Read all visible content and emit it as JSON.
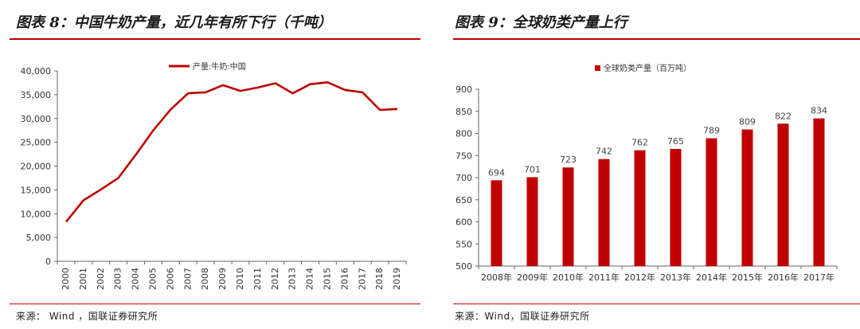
{
  "left": {
    "title": "图表 8：中国牛奶产量，近几年有所下行（千吨）",
    "source": "来源： Wind ，国联证券研究所",
    "color": "#c00000",
    "chart_data": {
      "type": "line",
      "x": [
        "2000",
        "2001",
        "2002",
        "2003",
        "2004",
        "2005",
        "2006",
        "2007",
        "2008",
        "2009",
        "2010",
        "2011",
        "2012",
        "2013",
        "2014",
        "2015",
        "2016",
        "2017",
        "2018",
        "2019"
      ],
      "series": [
        {
          "name": "产量:牛奶:中国",
          "values": [
            8300,
            12800,
            15100,
            17500,
            22400,
            27500,
            31900,
            35300,
            35500,
            37000,
            35800,
            36500,
            37400,
            35300,
            37200,
            37600,
            36000,
            35500,
            31800,
            32000
          ]
        }
      ],
      "ylim": [
        0,
        40000
      ],
      "yticks": [
        "0",
        "5,000",
        "10,000",
        "15,000",
        "20,000",
        "25,000",
        "30,000",
        "35,000",
        "40,000"
      ],
      "legend": "top"
    }
  },
  "right": {
    "title": "图表 9：全球奶类产量上行",
    "source": "来源：Wind，国联证券研究所",
    "color": "#c00000",
    "chart_data": {
      "type": "bar",
      "categories": [
        "2008年",
        "2009年",
        "2010年",
        "2011年",
        "2012年",
        "2013年",
        "2014年",
        "2015年",
        "2016年",
        "2017年"
      ],
      "series": [
        {
          "name": "全球奶类产量（百万吨）",
          "values": [
            694,
            701,
            723,
            742,
            762,
            765,
            789,
            809,
            822,
            834
          ]
        }
      ],
      "ylim": [
        500,
        900
      ],
      "yticks": [
        "500",
        "550",
        "600",
        "650",
        "700",
        "750",
        "800",
        "850",
        "900"
      ],
      "legend": "top"
    }
  }
}
